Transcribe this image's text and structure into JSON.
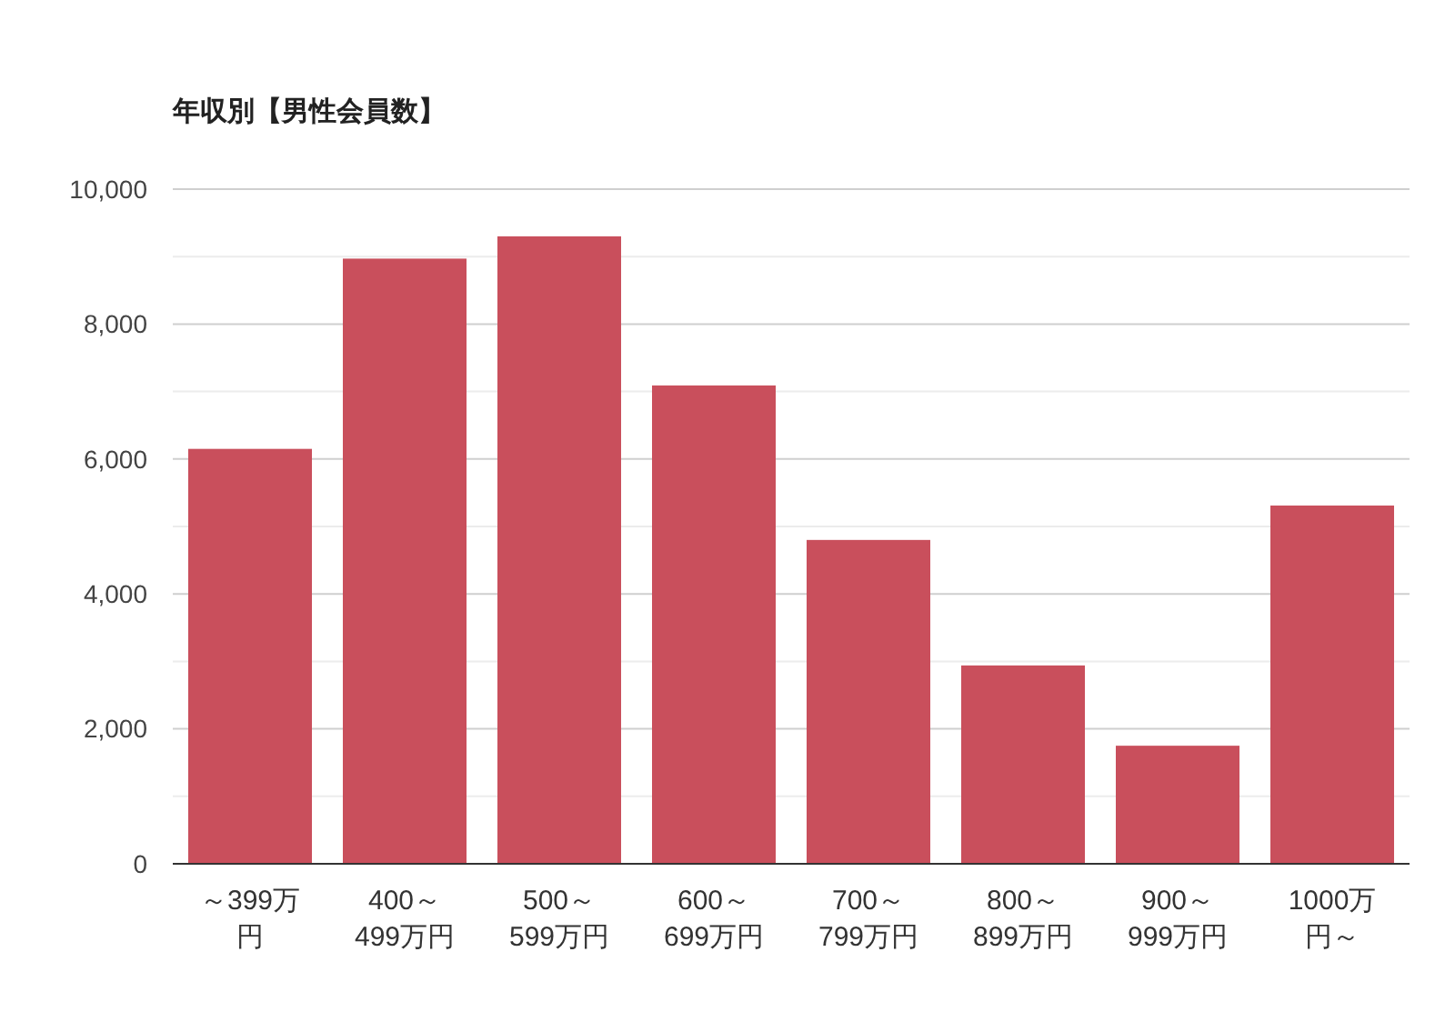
{
  "chart_data": {
    "type": "bar",
    "title": "年収別【男性会員数】",
    "categories": [
      "～399万円",
      "400～499万円",
      "500～599万円",
      "600～699万円",
      "700～799万円",
      "800～899万円",
      "900～999万円",
      "1000万円～"
    ],
    "values": [
      6150,
      8970,
      9300,
      7090,
      4800,
      2940,
      1750,
      5310
    ],
    "color": "#c94f5c",
    "ylim": [
      0,
      10000
    ],
    "yticks": [
      {
        "value": 0,
        "label": "0"
      },
      {
        "value": 1000,
        "label": null
      },
      {
        "value": 2000,
        "label": "2,000"
      },
      {
        "value": 3000,
        "label": null
      },
      {
        "value": 4000,
        "label": "4,000"
      },
      {
        "value": 5000,
        "label": null
      },
      {
        "value": 6000,
        "label": "6,000"
      },
      {
        "value": 7000,
        "label": null
      },
      {
        "value": 8000,
        "label": "8,000"
      },
      {
        "value": 9000,
        "label": null
      },
      {
        "value": 10000,
        "label": "10,000"
      }
    ],
    "grid": true
  }
}
